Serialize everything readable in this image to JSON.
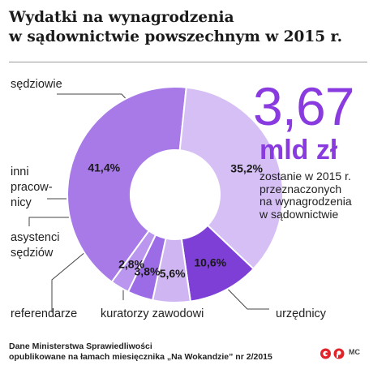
{
  "title_line1": "Wydatki na wynagrodzenia",
  "title_line2": "w sądownictwie powszechnym w 2015 r.",
  "big_value": "3,67",
  "big_unit": "mld zł",
  "description": [
    "zostanie w 2015 r.",
    "przeznaczonych",
    "na wynagrodzenia",
    "w sądownictwie"
  ],
  "labels": {
    "sedziowie": [
      "sędziowie"
    ],
    "inni": [
      "inni",
      "pracow-",
      "nicy"
    ],
    "asystenci": [
      "asystenci",
      "sędziów"
    ],
    "referendarze": [
      "referendarze"
    ],
    "kuratorzy": [
      "kuratorzy zawodowi"
    ],
    "urzednicy": [
      "urzędnicy"
    ]
  },
  "source_line1": "Dane Ministerstwa Sprawiedliwości",
  "source_line2": "opublikowane na łamach miesięcznika „Na Wokandzie” nr 2/2015",
  "credit": "MC",
  "colors": {
    "accent": "#8a3be0",
    "sedziowie": "#a77ae8",
    "urzednicy": "#d5bff5",
    "kuratorzy": "#7e3fd6",
    "referendarze": "#cfb6f3",
    "asystenci": "#9c6ce6",
    "inni": "#ba96ee"
  },
  "chart_data": {
    "type": "pie",
    "donut": true,
    "unit": "%",
    "slices": [
      {
        "key": "sedziowie",
        "value": 41.4,
        "label": "41,4%"
      },
      {
        "key": "urzednicy",
        "value": 35.2,
        "label": "35,2%"
      },
      {
        "key": "kuratorzy",
        "value": 10.6,
        "label": "10,6%"
      },
      {
        "key": "referendarze",
        "value": 5.6,
        "label": "5,6%"
      },
      {
        "key": "asystenci",
        "value": 3.8,
        "label": "3,8%"
      },
      {
        "key": "inni",
        "value": 2.8,
        "label": "2,8%"
      }
    ]
  }
}
